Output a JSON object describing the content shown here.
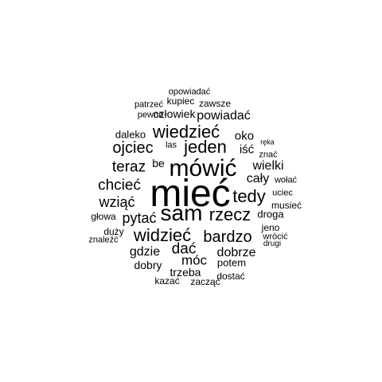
{
  "words": [
    "mieć",
    "mówić",
    "sam",
    "jeden",
    "wiedzieć",
    "rzecz",
    "widzieć",
    "bardzo",
    "tedy",
    "ojciec",
    "chcieć",
    "teraz",
    "dać",
    "wziąć",
    "pytać",
    "wielki",
    "cały",
    "dobrze",
    "móc",
    "powiadać",
    "gdzie",
    "oko",
    "iść",
    "człowiek",
    "daleko",
    "potem",
    "dobry",
    "be",
    "trzeba",
    "droga",
    "las",
    "opowiadać",
    "kupiec",
    "zawsze",
    "patrzeć",
    "pewno",
    "ręka",
    "znać",
    "wołać",
    "uciec",
    "musieć",
    "głowa",
    "jeno",
    "duży",
    "wrócić",
    "znaleźć",
    "drugi",
    "kazać",
    "dostać",
    "zacząć"
  ],
  "style": {
    "text_color": "#000000",
    "background": "#ffffff"
  }
}
